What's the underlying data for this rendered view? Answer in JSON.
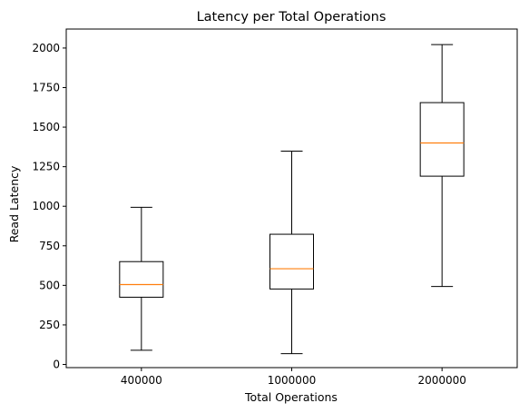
{
  "chart_data": {
    "type": "box",
    "title": "Latency per Total Operations",
    "xlabel": "Total Operations",
    "ylabel": "Read Latency",
    "ylim": [
      -20,
      2120
    ],
    "yticks": [
      0,
      250,
      500,
      750,
      1000,
      1250,
      1500,
      1750,
      2000
    ],
    "categories": [
      "400000",
      "1000000",
      "2000000"
    ],
    "boxes": [
      {
        "category": "400000",
        "whisker_low": 90,
        "q1": 425,
        "median": 505,
        "q3": 650,
        "whisker_high": 993
      },
      {
        "category": "1000000",
        "whisker_low": 68,
        "q1": 477,
        "median": 605,
        "q3": 823,
        "whisker_high": 1348
      },
      {
        "category": "2000000",
        "whisker_low": 493,
        "q1": 1190,
        "median": 1400,
        "q3": 1655,
        "whisker_high": 2022
      }
    ],
    "grid": false,
    "colors": {
      "box": "#000000",
      "median": "#ff7f0e",
      "frame": "#000000"
    }
  }
}
